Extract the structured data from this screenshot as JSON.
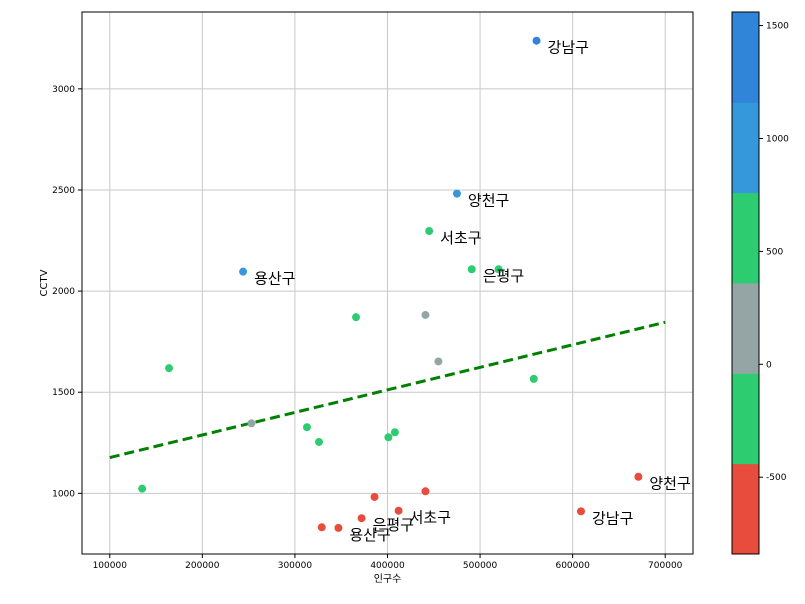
{
  "chart_data": {
    "type": "scatter",
    "title": "",
    "xlabel": "인구수",
    "ylabel": "CCTV",
    "xlim": [
      70000,
      730000
    ],
    "ylim": [
      700,
      3380
    ],
    "xticks": [
      100000,
      200000,
      300000,
      400000,
      500000,
      600000,
      700000
    ],
    "xtick_labels": [
      "100000",
      "200000",
      "300000",
      "400000",
      "500000",
      "600000",
      "700000"
    ],
    "yticks": [
      1000,
      1500,
      2000,
      2500,
      3000
    ],
    "ytick_labels": [
      "1000",
      "1500",
      "2000",
      "2500",
      "3000"
    ],
    "grid": true,
    "points": [
      {
        "x": 561000,
        "y": 3238,
        "c": 1500
      },
      {
        "x": 475000,
        "y": 2482,
        "c": 1100
      },
      {
        "x": 244000,
        "y": 2096,
        "c": 1150
      },
      {
        "x": 445000,
        "y": 2297,
        "c": 600
      },
      {
        "x": 491000,
        "y": 2108,
        "c": 600
      },
      {
        "x": 520000,
        "y": 2108,
        "c": 600
      },
      {
        "x": 366000,
        "y": 1871,
        "c": 600
      },
      {
        "x": 441000,
        "y": 1882,
        "c": 200
      },
      {
        "x": 455000,
        "y": 1652,
        "c": 200
      },
      {
        "x": 164000,
        "y": 1619,
        "c": 550
      },
      {
        "x": 558000,
        "y": 1566,
        "c": 500
      },
      {
        "x": 253000,
        "y": 1346,
        "c": 100
      },
      {
        "x": 313000,
        "y": 1327,
        "c": -200
      },
      {
        "x": 326000,
        "y": 1254,
        "c": -200
      },
      {
        "x": 401000,
        "y": 1277,
        "c": -150
      },
      {
        "x": 408000,
        "y": 1302,
        "c": -150
      },
      {
        "x": 135000,
        "y": 1023,
        "c": -250
      },
      {
        "x": 671000,
        "y": 1082,
        "c": -700
      },
      {
        "x": 609000,
        "y": 911,
        "c": -700
      },
      {
        "x": 441000,
        "y": 1010,
        "c": -700
      },
      {
        "x": 386000,
        "y": 982,
        "c": -700
      },
      {
        "x": 412000,
        "y": 914,
        "c": -700
      },
      {
        "x": 372000,
        "y": 877,
        "c": -700
      },
      {
        "x": 329000,
        "y": 832,
        "c": -700
      },
      {
        "x": 347000,
        "y": 829,
        "c": -700
      }
    ],
    "annotations": [
      {
        "text": "강남구",
        "x": 561000,
        "y": 3238
      },
      {
        "text": "양천구",
        "x": 475000,
        "y": 2482
      },
      {
        "text": "서초구",
        "x": 445000,
        "y": 2297
      },
      {
        "text": "은평구",
        "x": 491000,
        "y": 2108
      },
      {
        "text": "용산구",
        "x": 244000,
        "y": 2096
      },
      {
        "text": "양천구",
        "x": 671000,
        "y": 1082
      },
      {
        "text": "강남구",
        "x": 609000,
        "y": 911
      },
      {
        "text": "서초구",
        "x": 412000,
        "y": 914
      },
      {
        "text": "은평구",
        "x": 372000,
        "y": 877
      },
      {
        "text": "용산구",
        "x": 347000,
        "y": 829
      }
    ],
    "trendline": {
      "x": [
        100000,
        700000
      ],
      "y": [
        1177,
        1846
      ],
      "color": "#008000",
      "style": "dashed"
    },
    "colorbar": {
      "range": [
        -840,
        1560
      ],
      "ticks": [
        -500,
        0,
        500,
        1000,
        1500
      ],
      "tick_labels": [
        "-500",
        "0",
        "500",
        "1000",
        "1500"
      ],
      "bands": [
        "#e74c3c",
        "#2ecc71",
        "#95a5a6",
        "#2ecc71",
        "#3498db",
        "#3085d9"
      ]
    }
  }
}
